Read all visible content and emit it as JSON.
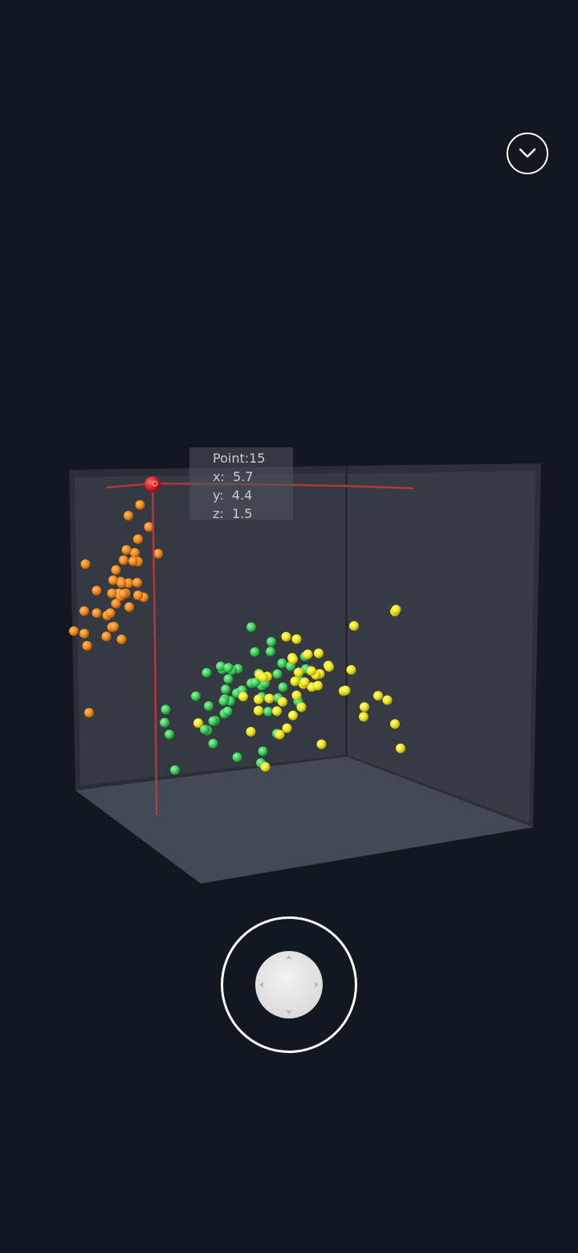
{
  "tooltip": {
    "point_label": "Point:15",
    "x_label": "x:  5.7",
    "y_label": "y:  4.4",
    "z_label": "z:  1.5"
  },
  "icons": {
    "collapse": "chevron-down-icon",
    "joystick": "joystick-icon"
  },
  "colors": {
    "background": "#121820",
    "series_orange": "#f08c1e",
    "series_green": "#3ed05c",
    "series_yellow": "#f0e61c",
    "highlight": "#d42424",
    "crosshair": "#c0383c"
  },
  "chart_data": {
    "type": "scatter",
    "dimensions": 3,
    "selected_point": {
      "index": 15,
      "x": 5.7,
      "y": 4.4,
      "z": 1.5
    },
    "series": [
      {
        "color": "#f08c1e",
        "points": [
          [
            5.7,
            4.4,
            1.5
          ],
          [
            5.4,
            3.9,
            1.5
          ],
          [
            5.1,
            3.5,
            1.4
          ],
          [
            4.9,
            3.1,
            1.5
          ],
          [
            5.0,
            3.6,
            1.4
          ],
          [
            4.6,
            3.4,
            1.4
          ],
          [
            5.0,
            3.4,
            1.5
          ],
          [
            4.4,
            2.9,
            1.4
          ],
          [
            4.9,
            3.1,
            1.5
          ],
          [
            5.4,
            3.7,
            1.5
          ],
          [
            4.8,
            3.4,
            1.6
          ],
          [
            4.8,
            3.0,
            1.4
          ],
          [
            4.3,
            3.0,
            1.1
          ],
          [
            5.8,
            4.0,
            1.2
          ],
          [
            5.7,
            3.8,
            1.7
          ],
          [
            5.4,
            3.4,
            1.7
          ],
          [
            5.1,
            3.7,
            1.5
          ],
          [
            4.6,
            3.6,
            1.0
          ],
          [
            5.1,
            3.3,
            1.7
          ],
          [
            4.8,
            3.4,
            1.9
          ],
          [
            5.0,
            3.0,
            1.6
          ],
          [
            5.2,
            3.5,
            1.5
          ],
          [
            5.2,
            3.4,
            1.4
          ],
          [
            4.7,
            3.2,
            1.6
          ],
          [
            4.8,
            3.1,
            1.6
          ],
          [
            5.4,
            3.4,
            1.5
          ],
          [
            5.2,
            4.1,
            1.5
          ],
          [
            5.5,
            4.2,
            1.4
          ],
          [
            4.9,
            3.1,
            1.5
          ],
          [
            5.0,
            3.2,
            1.2
          ],
          [
            5.5,
            3.5,
            1.3
          ],
          [
            4.4,
            3.0,
            1.3
          ],
          [
            5.1,
            3.4,
            1.5
          ],
          [
            5.0,
            3.5,
            1.3
          ],
          [
            4.5,
            2.3,
            1.3
          ],
          [
            4.4,
            3.2,
            1.3
          ],
          [
            5.0,
            3.5,
            1.6
          ],
          [
            5.1,
            3.8,
            1.9
          ],
          [
            4.8,
            3.0,
            1.4
          ],
          [
            5.1,
            3.8,
            1.6
          ],
          [
            4.6,
            3.2,
            1.4
          ],
          [
            5.3,
            3.7,
            1.5
          ],
          [
            5.0,
            3.3,
            1.4
          ]
        ]
      },
      {
        "color": "#3ed05c",
        "points": [
          [
            7.0,
            3.2,
            4.7
          ],
          [
            6.4,
            3.2,
            4.5
          ],
          [
            6.9,
            3.1,
            4.9
          ],
          [
            5.5,
            2.3,
            4.0
          ],
          [
            6.5,
            2.8,
            4.6
          ],
          [
            5.7,
            2.8,
            4.5
          ],
          [
            6.3,
            3.3,
            4.7
          ],
          [
            4.9,
            2.4,
            3.3
          ],
          [
            6.6,
            2.9,
            4.6
          ],
          [
            5.2,
            2.7,
            3.9
          ],
          [
            5.0,
            2.0,
            3.5
          ],
          [
            5.9,
            3.0,
            4.2
          ],
          [
            6.0,
            2.2,
            4.0
          ],
          [
            6.1,
            2.9,
            4.7
          ],
          [
            5.6,
            2.9,
            3.6
          ],
          [
            6.7,
            3.1,
            4.4
          ],
          [
            5.6,
            3.0,
            4.5
          ],
          [
            5.8,
            2.7,
            4.1
          ],
          [
            6.2,
            2.2,
            4.5
          ],
          [
            5.6,
            2.5,
            3.9
          ],
          [
            5.9,
            3.2,
            4.8
          ],
          [
            6.1,
            2.8,
            4.0
          ],
          [
            6.3,
            2.5,
            4.9
          ],
          [
            6.1,
            2.8,
            4.7
          ],
          [
            6.4,
            2.9,
            4.3
          ],
          [
            6.6,
            3.0,
            4.4
          ],
          [
            6.8,
            2.8,
            4.8
          ],
          [
            6.7,
            3.0,
            5.0
          ],
          [
            6.0,
            2.9,
            4.5
          ],
          [
            5.7,
            2.6,
            3.5
          ],
          [
            5.5,
            2.4,
            3.8
          ],
          [
            5.5,
            2.4,
            3.7
          ],
          [
            5.8,
            2.7,
            3.9
          ],
          [
            6.0,
            2.7,
            5.1
          ],
          [
            5.4,
            3.0,
            4.5
          ],
          [
            6.0,
            3.4,
            4.5
          ],
          [
            6.7,
            3.1,
            4.7
          ],
          [
            6.3,
            2.3,
            4.4
          ],
          [
            5.6,
            3.0,
            4.1
          ],
          [
            5.5,
            2.5,
            4.0
          ],
          [
            5.5,
            2.6,
            4.4
          ],
          [
            6.1,
            3.0,
            4.6
          ],
          [
            5.8,
            2.6,
            4.0
          ],
          [
            5.0,
            2.3,
            3.3
          ],
          [
            5.6,
            2.7,
            4.2
          ],
          [
            5.7,
            3.0,
            4.2
          ],
          [
            5.7,
            2.9,
            4.2
          ],
          [
            6.2,
            2.9,
            4.3
          ],
          [
            5.1,
            2.5,
            3.0
          ],
          [
            5.7,
            2.8,
            4.1
          ]
        ]
      },
      {
        "color": "#f0e61c",
        "points": [
          [
            6.3,
            3.3,
            6.0
          ],
          [
            5.8,
            2.7,
            5.1
          ],
          [
            7.1,
            3.0,
            5.9
          ],
          [
            6.3,
            2.9,
            5.6
          ],
          [
            6.5,
            3.0,
            5.8
          ],
          [
            7.6,
            3.0,
            6.6
          ],
          [
            4.9,
            2.5,
            4.5
          ],
          [
            7.3,
            2.9,
            6.3
          ],
          [
            6.7,
            2.5,
            5.8
          ],
          [
            7.2,
            3.6,
            6.1
          ],
          [
            6.5,
            3.2,
            5.1
          ],
          [
            6.4,
            2.7,
            5.3
          ],
          [
            6.8,
            3.0,
            5.5
          ],
          [
            5.7,
            2.5,
            5.0
          ],
          [
            5.8,
            2.8,
            5.1
          ],
          [
            6.4,
            3.2,
            5.3
          ],
          [
            6.5,
            3.0,
            5.5
          ],
          [
            7.7,
            3.8,
            6.7
          ],
          [
            7.7,
            2.6,
            6.9
          ],
          [
            6.0,
            2.2,
            5.0
          ],
          [
            6.9,
            3.2,
            5.7
          ],
          [
            5.6,
            2.8,
            4.9
          ],
          [
            7.7,
            2.8,
            6.7
          ],
          [
            6.3,
            2.7,
            4.9
          ],
          [
            6.7,
            3.3,
            5.7
          ],
          [
            7.2,
            3.2,
            6.0
          ],
          [
            6.2,
            2.8,
            4.8
          ],
          [
            6.1,
            3.0,
            4.9
          ],
          [
            6.4,
            2.8,
            5.6
          ],
          [
            7.2,
            3.0,
            5.8
          ],
          [
            7.4,
            2.8,
            6.1
          ],
          [
            7.9,
            3.8,
            6.4
          ],
          [
            6.4,
            2.8,
            5.6
          ],
          [
            6.3,
            2.8,
            5.1
          ],
          [
            6.1,
            2.6,
            5.6
          ],
          [
            7.7,
            3.0,
            6.1
          ],
          [
            6.3,
            3.4,
            5.6
          ],
          [
            6.4,
            3.1,
            5.5
          ],
          [
            6.0,
            3.0,
            4.8
          ],
          [
            6.9,
            3.1,
            5.4
          ],
          [
            6.7,
            3.1,
            5.6
          ],
          [
            6.9,
            3.1,
            5.1
          ],
          [
            5.8,
            2.7,
            5.1
          ],
          [
            6.8,
            3.2,
            5.9
          ],
          [
            6.7,
            3.3,
            5.7
          ],
          [
            6.7,
            3.0,
            5.2
          ],
          [
            6.3,
            2.5,
            5.0
          ],
          [
            6.5,
            3.0,
            5.2
          ],
          [
            6.2,
            3.4,
            5.4
          ],
          [
            5.9,
            3.0,
            5.1
          ]
        ]
      }
    ]
  }
}
